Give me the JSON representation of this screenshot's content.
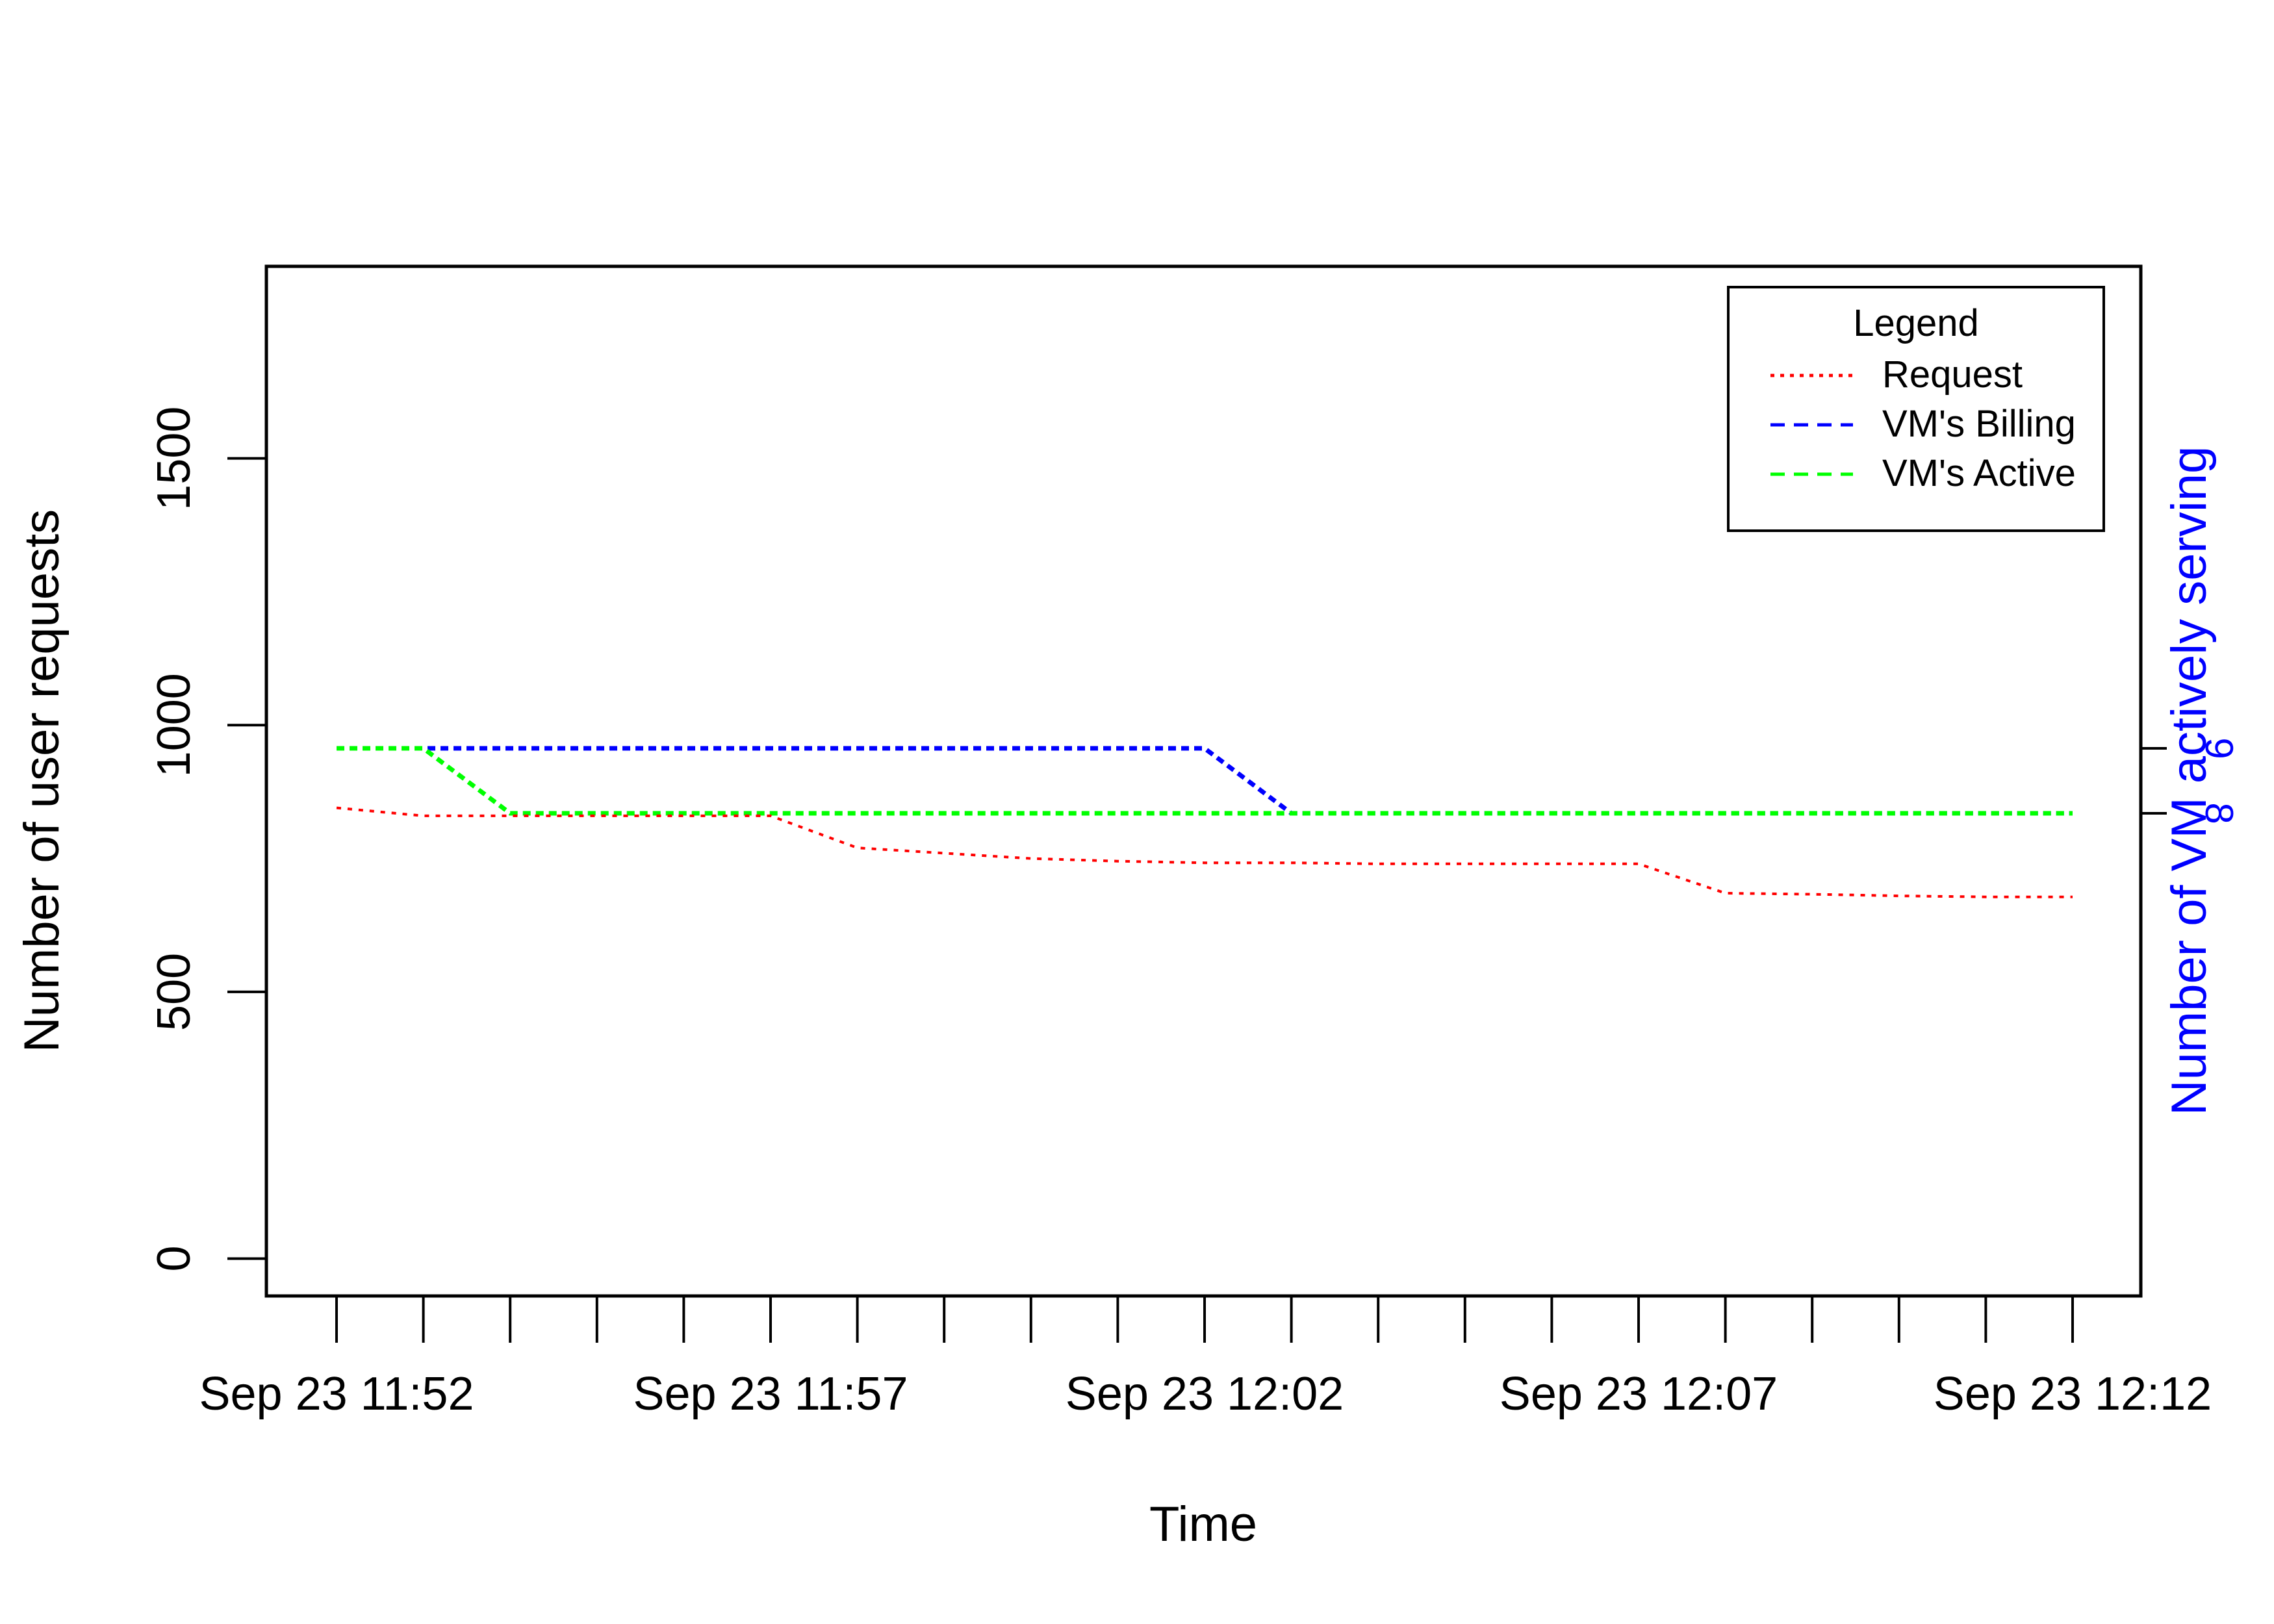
{
  "chart_data": {
    "type": "line",
    "title": "",
    "xlabel": "Time",
    "ylabel": "Number of user requests",
    "y2label": "Number of VM actively serving",
    "ylim": [
      -70,
      1860
    ],
    "y_ticks": [
      0,
      500,
      1000,
      1500
    ],
    "y_tick_labels": [
      "0",
      "500",
      "1000",
      "1500"
    ],
    "y2_ticks": [
      8,
      9
    ],
    "y2_tick_labels": [
      "8",
      "9"
    ],
    "x_minor_ticks": [
      "11:52",
      "11:53",
      "11:54",
      "11:55",
      "11:56",
      "11:57",
      "11:58",
      "11:59",
      "12:00",
      "12:01",
      "12:02",
      "12:03",
      "12:04",
      "12:05",
      "12:06",
      "12:07",
      "12:08",
      "12:09",
      "12:10",
      "12:11",
      "12:12"
    ],
    "x_tick_labels": [
      {
        "x": "11:52",
        "label": "Sep 23 11:52"
      },
      {
        "x": "11:57",
        "label": "Sep 23 11:57"
      },
      {
        "x": "12:02",
        "label": "Sep 23 12:02"
      },
      {
        "x": "12:07",
        "label": "Sep 23 12:07"
      },
      {
        "x": "12:12",
        "label": "Sep 23 12:12"
      }
    ],
    "legend": {
      "title": "Legend",
      "position": "top-right"
    },
    "colors": {
      "request": "#ff0000",
      "billing": "#0000ff",
      "active": "#00ff00",
      "y2axis": "#0000ff"
    },
    "series": [
      {
        "name": "Request",
        "axis": "left",
        "color": "#ff0000",
        "dash": "dotted",
        "x": [
          "11:52",
          "11:53",
          "11:54",
          "11:55",
          "11:56",
          "11:57",
          "11:58",
          "11:59",
          "12:00",
          "12:01",
          "12:02",
          "12:03",
          "12:04",
          "12:05",
          "12:06",
          "12:07",
          "12:08",
          "12:09",
          "12:10",
          "12:11",
          "12:12"
        ],
        "values": [
          845,
          830,
          830,
          830,
          830,
          830,
          770,
          760,
          750,
          745,
          742,
          742,
          740,
          740,
          740,
          740,
          685,
          683,
          680,
          678,
          678
        ]
      },
      {
        "name": "VM's Billing",
        "axis": "right",
        "color": "#0000ff",
        "dash": "dashed",
        "x": [
          "11:52",
          "11:53",
          "11:54",
          "11:55",
          "11:56",
          "11:57",
          "11:58",
          "11:59",
          "12:00",
          "12:01",
          "12:02",
          "12:03",
          "12:04",
          "12:05",
          "12:06",
          "12:07",
          "12:08",
          "12:09",
          "12:10",
          "12:11",
          "12:12"
        ],
        "values": [
          9,
          9,
          9,
          9,
          9,
          9,
          9,
          9,
          9,
          9,
          9,
          8,
          8,
          8,
          8,
          8,
          8,
          8,
          8,
          8,
          8
        ]
      },
      {
        "name": "VM's Active",
        "axis": "right",
        "color": "#00ff00",
        "dash": "dashed",
        "x": [
          "11:52",
          "11:53",
          "11:54",
          "11:55",
          "11:56",
          "11:57",
          "11:58",
          "11:59",
          "12:00",
          "12:01",
          "12:02",
          "12:03",
          "12:04",
          "12:05",
          "12:06",
          "12:07",
          "12:08",
          "12:09",
          "12:10",
          "12:11",
          "12:12"
        ],
        "values": [
          9,
          9,
          8,
          8,
          8,
          8,
          8,
          8,
          8,
          8,
          8,
          8,
          8,
          8,
          8,
          8,
          8,
          8,
          8,
          8,
          8
        ]
      }
    ]
  }
}
